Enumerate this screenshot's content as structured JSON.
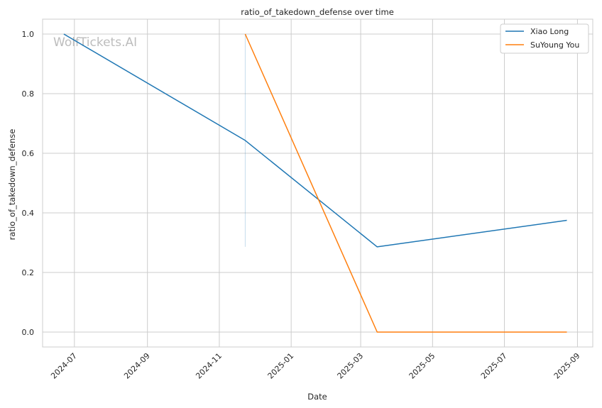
{
  "watermark": "WolfTickets.AI",
  "chart_data": {
    "type": "line",
    "title": "ratio_of_takedown_defense over time",
    "xlabel": "Date",
    "ylabel": "ratio_of_takedown_defense",
    "xlim": [
      "2024-06-04",
      "2025-09-14"
    ],
    "ylim": [
      -0.05,
      1.05
    ],
    "x_ticks": [
      "2024-07",
      "2024-09",
      "2024-11",
      "2025-01",
      "2025-03",
      "2025-05",
      "2025-07",
      "2025-09"
    ],
    "y_ticks": [
      "0.0",
      "0.2",
      "0.4",
      "0.6",
      "0.8",
      "1.0"
    ],
    "grid": true,
    "legend_position": "top-right",
    "series": [
      {
        "name": "Xiao Long",
        "color": "#1f77b4",
        "points": [
          {
            "x": "2024-06-22",
            "y": 1.0
          },
          {
            "x": "2024-11-23",
            "y": 0.643
          },
          {
            "x": "2025-03-15",
            "y": 0.286
          },
          {
            "x": "2025-08-23",
            "y": 0.375
          }
        ]
      },
      {
        "name": "SuYoung You",
        "color": "#ff7f0e",
        "points": [
          {
            "x": "2024-11-23",
            "y": 1.0
          },
          {
            "x": "2025-03-15",
            "y": 0.0
          },
          {
            "x": "2025-08-23",
            "y": 0.0
          }
        ]
      }
    ]
  }
}
